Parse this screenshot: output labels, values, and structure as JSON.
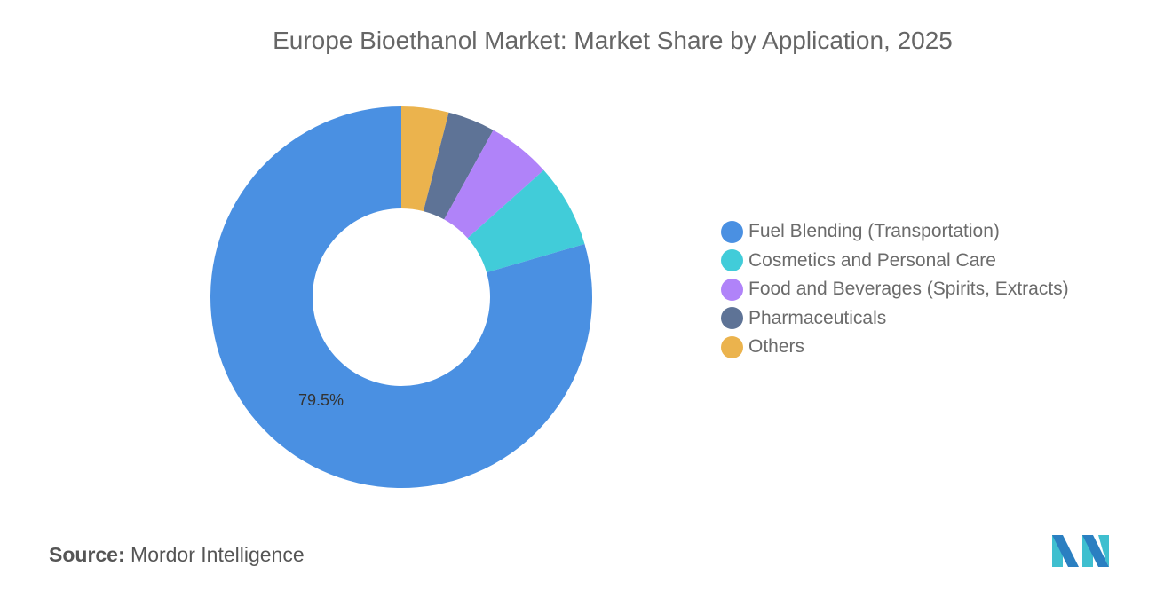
{
  "title": "Europe Bioethanol Market: Market Share by Application, 2025",
  "source": {
    "label": "Source:",
    "value": "Mordor Intelligence"
  },
  "chart_data": {
    "type": "pie",
    "title": "Europe Bioethanol Market: Market Share by Application, 2025",
    "donut": true,
    "categories": [
      "Fuel Blending (Transportation)",
      "Cosmetics and Personal Care",
      "Food and Beverages (Spirits, Extracts)",
      "Pharmaceuticals",
      "Others"
    ],
    "values": [
      79.5,
      7.1,
      5.4,
      4.0,
      4.0
    ],
    "colors": [
      "#4a90e2",
      "#41ccd9",
      "#b083f9",
      "#5e7396",
      "#ebb34d"
    ],
    "data_labels": [
      "79.5%",
      "",
      "",
      "",
      ""
    ],
    "legend_position": "right"
  },
  "legend": [
    {
      "label": "Fuel Blending (Transportation)",
      "color": "#4a90e2"
    },
    {
      "label": "Cosmetics and Personal Care",
      "color": "#41ccd9"
    },
    {
      "label": "Food and Beverages (Spirits, Extracts)",
      "color": "#b083f9"
    },
    {
      "label": "Pharmaceuticals",
      "color": "#5e7396"
    },
    {
      "label": "Others",
      "color": "#ebb34d"
    }
  ],
  "label_fuel": "79.5%"
}
